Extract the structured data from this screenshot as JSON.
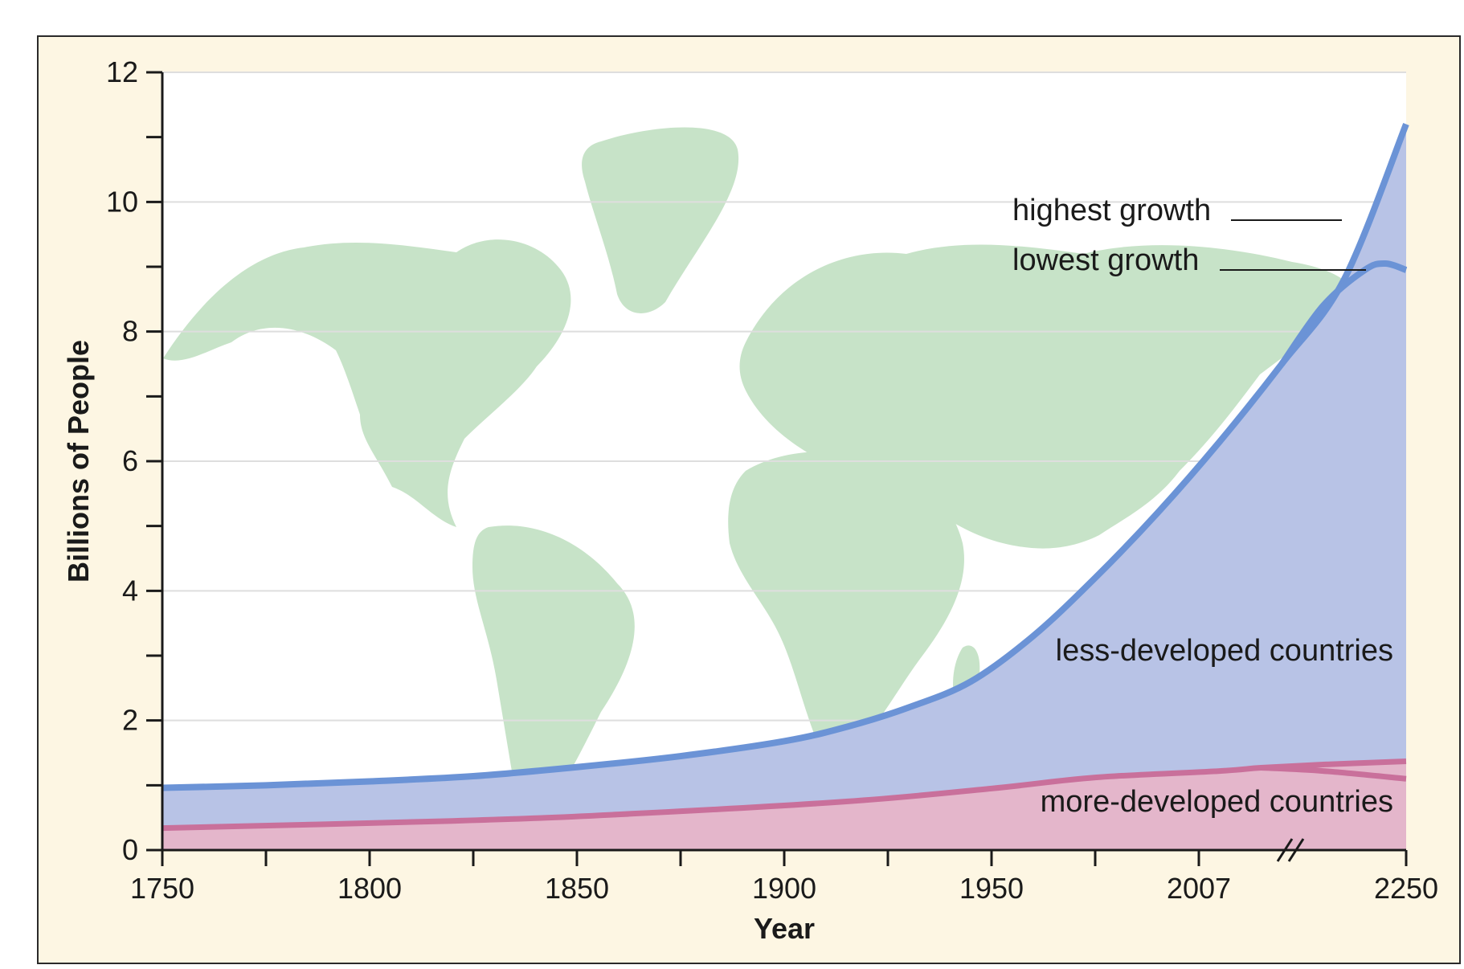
{
  "chart_data": {
    "type": "area",
    "xlabel": "Year",
    "ylabel": "Billions of People",
    "x_tick_labels": [
      "1750",
      "1800",
      "1850",
      "1900",
      "1950",
      "2007",
      "2250"
    ],
    "ylim": [
      0,
      12
    ],
    "y_ticks": [
      0,
      2,
      4,
      6,
      8,
      10,
      12
    ],
    "y_tick_labels": [
      "0",
      "2",
      "4",
      "6",
      "8",
      "10",
      "12"
    ],
    "grid": "horizontal",
    "axis_break": "between 2007 and 2250",
    "background_image": "world map",
    "series": [
      {
        "name": "more-developed countries",
        "color": "#c9709b",
        "fill": "#e4b6cb",
        "points": [
          [
            0,
            0.34
          ],
          [
            1.4,
            0.45
          ],
          [
            2.2,
            0.55
          ],
          [
            3.3,
            0.75
          ],
          [
            4.0,
            0.95
          ],
          [
            4.5,
            1.12
          ],
          [
            5.1,
            1.22
          ],
          [
            5.3,
            1.27
          ],
          [
            5.6,
            1.32
          ],
          [
            6.0,
            1.37
          ]
        ],
        "branch_label": "lowest growth",
        "branch_points": [
          [
            5.3,
            1.27
          ],
          [
            5.6,
            1.22
          ],
          [
            6.0,
            1.1
          ]
        ]
      },
      {
        "name": "less-developed countries",
        "color": "#6b93d6",
        "fill": "#b8c3e6",
        "points": [
          [
            0,
            0.96
          ],
          [
            0.5,
            1.0
          ],
          [
            1.0,
            1.06
          ],
          [
            1.5,
            1.14
          ],
          [
            2.0,
            1.28
          ],
          [
            2.5,
            1.45
          ],
          [
            3.0,
            1.68
          ],
          [
            3.3,
            1.9
          ],
          [
            3.6,
            2.2
          ],
          [
            3.9,
            2.6
          ],
          [
            4.2,
            3.3
          ],
          [
            4.5,
            4.2
          ],
          [
            4.8,
            5.2
          ],
          [
            5.1,
            6.3
          ],
          [
            5.4,
            7.5
          ],
          [
            5.7,
            8.8
          ],
          [
            6.0,
            11.2
          ]
        ],
        "branch_label": "lowest growth",
        "branch_points": [
          [
            5.4,
            7.5
          ],
          [
            5.6,
            8.4
          ],
          [
            5.8,
            8.95
          ],
          [
            5.9,
            9.05
          ],
          [
            6.0,
            8.95
          ]
        ]
      }
    ],
    "annotations": [
      "highest growth",
      "lowest growth",
      "less-developed countries",
      "more-developed countries"
    ]
  }
}
